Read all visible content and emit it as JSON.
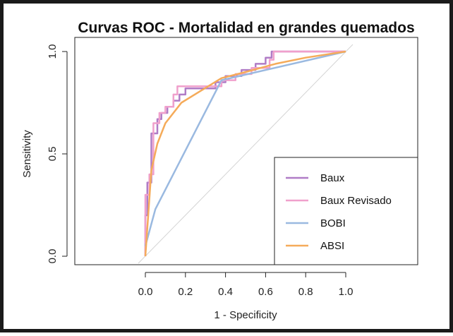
{
  "chart_data": {
    "type": "line",
    "title": "Curvas ROC - Mortalidad en grandes quemados",
    "xlabel": "1 - Specificity",
    "ylabel": "Sensitivity",
    "xlim": [
      0.0,
      1.0
    ],
    "ylim": [
      0.0,
      1.0
    ],
    "x_ticks": [
      "0.0",
      "0.2",
      "0.4",
      "0.6",
      "0.8",
      "1.0"
    ],
    "y_ticks": [
      "0.0",
      "0.5",
      "1.0"
    ],
    "x_tick_values": [
      0.0,
      0.2,
      0.4,
      0.6,
      0.8,
      1.0
    ],
    "y_tick_values": [
      0.0,
      0.5,
      1.0
    ],
    "legend_position": "bottom-right",
    "reference_line": {
      "from": [
        0,
        0
      ],
      "to": [
        1,
        1
      ],
      "color": "#d4d4d4"
    },
    "series": [
      {
        "name": "Baux",
        "color": "#b07cc6",
        "x": [
          0,
          0,
          0.01,
          0.01,
          0.03,
          0.03,
          0.06,
          0.06,
          0.08,
          0.08,
          0.11,
          0.11,
          0.14,
          0.14,
          0.17,
          0.17,
          0.2,
          0.2,
          0.35,
          0.35,
          0.4,
          0.4,
          0.48,
          0.48,
          0.55,
          0.55,
          0.6,
          0.6,
          0.63,
          0.63,
          1.0
        ],
        "y": [
          0,
          0.2,
          0.2,
          0.36,
          0.36,
          0.6,
          0.6,
          0.67,
          0.67,
          0.7,
          0.7,
          0.73,
          0.73,
          0.76,
          0.76,
          0.79,
          0.79,
          0.82,
          0.82,
          0.85,
          0.85,
          0.88,
          0.88,
          0.91,
          0.91,
          0.94,
          0.94,
          0.97,
          0.97,
          1.0,
          1.0
        ]
      },
      {
        "name": "Baux Revisado",
        "color": "#f0a0cc",
        "x": [
          0,
          0,
          0.02,
          0.02,
          0.04,
          0.04,
          0.07,
          0.07,
          0.1,
          0.1,
          0.14,
          0.14,
          0.16,
          0.16,
          0.38,
          0.38,
          0.45,
          0.45,
          0.53,
          0.53,
          0.62,
          0.62,
          0.64,
          0.64,
          0.7,
          1.0
        ],
        "y": [
          0,
          0.3,
          0.3,
          0.4,
          0.4,
          0.65,
          0.65,
          0.7,
          0.7,
          0.73,
          0.73,
          0.79,
          0.79,
          0.83,
          0.83,
          0.86,
          0.86,
          0.89,
          0.89,
          0.92,
          0.92,
          0.96,
          0.96,
          1.0,
          1.0,
          1.0
        ]
      },
      {
        "name": "BOBI",
        "color": "#9ab9e0",
        "x": [
          0,
          0.05,
          0.38,
          1.0
        ],
        "y": [
          0.05,
          0.23,
          0.86,
          1.0
        ]
      },
      {
        "name": "ABSI",
        "color": "#f5ab5a",
        "x": [
          0,
          0.03,
          0.06,
          0.1,
          0.18,
          0.28,
          0.38,
          0.5,
          0.65,
          0.8,
          1.0
        ],
        "y": [
          0,
          0.42,
          0.55,
          0.65,
          0.75,
          0.81,
          0.87,
          0.9,
          0.94,
          0.97,
          1.0
        ]
      }
    ]
  }
}
